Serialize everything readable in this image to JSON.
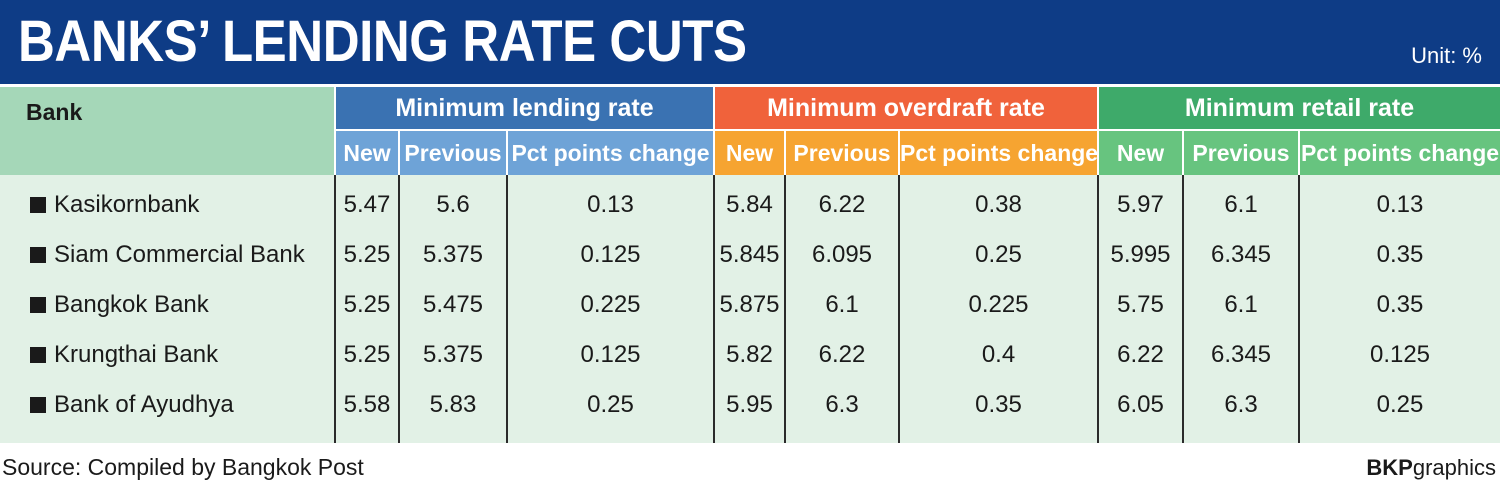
{
  "header": {
    "title": "BANKS’ LENDING RATE CUTS",
    "unit": "Unit: %"
  },
  "colors": {
    "header_bg": "#0e3c86",
    "bank_header": "#a5d7b8",
    "lending_dark": "#3a72b2",
    "lending_light": "#6ea3d7",
    "overdraft_dark": "#f0623b",
    "overdraft_light": "#f6a431",
    "retail_dark": "#3eaa6a",
    "retail_light": "#67c47f",
    "body_bg": "#e2f1e6"
  },
  "chart_data": {
    "type": "table",
    "title": "BANKS’ LENDING RATE CUTS",
    "unit": "Unit: %",
    "bank_header": "Bank",
    "groups": [
      {
        "name": "Minimum lending rate",
        "columns": [
          "New",
          "Previous",
          "Pct points change"
        ]
      },
      {
        "name": "Minimum overdraft rate",
        "columns": [
          "New",
          "Previous",
          "Pct points change"
        ]
      },
      {
        "name": "Minimum retail rate",
        "columns": [
          "New",
          "Previous",
          "Pct points change"
        ]
      }
    ],
    "rows": [
      {
        "bank": "Kasikornbank",
        "values": [
          "5.47",
          "5.6",
          "0.13",
          "5.84",
          "6.22",
          "0.38",
          "5.97",
          "6.1",
          "0.13"
        ]
      },
      {
        "bank": "Siam Commercial Bank",
        "values": [
          "5.25",
          "5.375",
          "0.125",
          "5.845",
          "6.095",
          "0.25",
          "5.995",
          "6.345",
          "0.35"
        ]
      },
      {
        "bank": "Bangkok Bank",
        "values": [
          "5.25",
          "5.475",
          "0.225",
          "5.875",
          "6.1",
          "0.225",
          "5.75",
          "6.1",
          "0.35"
        ]
      },
      {
        "bank": "Krungthai Bank",
        "values": [
          "5.25",
          "5.375",
          "0.125",
          "5.82",
          "6.22",
          "0.4",
          "6.22",
          "6.345",
          "0.125"
        ]
      },
      {
        "bank": "Bank of Ayudhya",
        "values": [
          "5.58",
          "5.83",
          "0.25",
          "5.95",
          "6.3",
          "0.35",
          "6.05",
          "6.3",
          "0.25"
        ]
      }
    ]
  },
  "footer": {
    "source": "Source: Compiled by Bangkok Post",
    "credit_bold": "BKP",
    "credit_rest": "graphics"
  }
}
